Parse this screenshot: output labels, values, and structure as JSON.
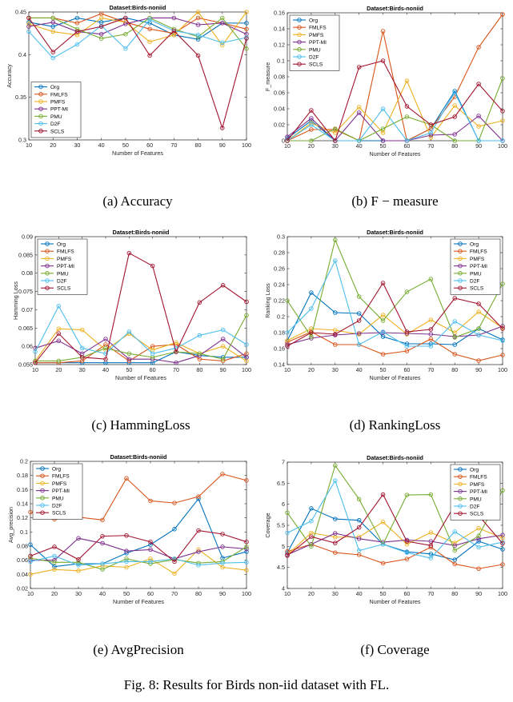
{
  "figure_caption": "Fig. 8: Results for Birds non-iid dataset with FL.",
  "series_styles": [
    {
      "name": "Org",
      "color": "#0072BD"
    },
    {
      "name": "FMLFS",
      "color": "#D95319"
    },
    {
      "name": "PMFS",
      "color": "#EDB120"
    },
    {
      "name": "PPT-MI",
      "color": "#7E2F8E"
    },
    {
      "name": "PMU",
      "color": "#77AC30"
    },
    {
      "name": "D2F",
      "color": "#4DBEEE"
    },
    {
      "name": "SCLS",
      "color": "#A2142F"
    }
  ],
  "chart_data": [
    {
      "type": "line",
      "caption": "(a) Accuracy",
      "title": "Dataset:Birds-noniid",
      "xlabel": "Number of Features",
      "ylabel": "Accuracy",
      "x": [
        10,
        20,
        30,
        40,
        50,
        60,
        70,
        80,
        90,
        100
      ],
      "xlim": [
        10,
        100
      ],
      "ylim": [
        0.3,
        0.45
      ],
      "yticks": [
        0.3,
        0.35,
        0.4,
        0.45
      ],
      "yticklabels": [
        "0.3",
        "0.35",
        "0.4",
        "0.45"
      ],
      "legend_position": "bottom-left",
      "series": [
        {
          "name": "Org",
          "values": [
            0.438,
            0.433,
            0.443,
            0.438,
            0.443,
            0.437,
            0.423,
            0.418,
            0.437,
            0.437
          ]
        },
        {
          "name": "FMLFS",
          "values": [
            0.443,
            0.443,
            0.437,
            0.448,
            0.438,
            0.43,
            0.425,
            0.443,
            0.437,
            0.43
          ]
        },
        {
          "name": "PMFS",
          "values": [
            0.436,
            0.427,
            0.423,
            0.443,
            0.438,
            0.415,
            0.423,
            0.45,
            0.411,
            0.45
          ]
        },
        {
          "name": "PPT-MI",
          "values": [
            0.433,
            0.438,
            0.427,
            0.424,
            0.436,
            0.443,
            0.443,
            0.435,
            0.437,
            0.424
          ]
        },
        {
          "name": "PMU",
          "values": [
            0.443,
            0.443,
            0.43,
            0.419,
            0.424,
            0.443,
            0.43,
            0.421,
            0.443,
            0.407
          ]
        },
        {
          "name": "D2F",
          "values": [
            0.427,
            0.396,
            0.412,
            0.434,
            0.407,
            0.441,
            0.428,
            0.423,
            0.414,
            0.42
          ]
        },
        {
          "name": "SCLS",
          "values": [
            0.443,
            0.403,
            0.427,
            0.433,
            0.443,
            0.399,
            0.428,
            0.399,
            0.314,
            0.419
          ]
        }
      ]
    },
    {
      "type": "line",
      "caption": "(b) F − measure",
      "title": "Dataset:Birds-noniid",
      "xlabel": "Number of Features",
      "ylabel": "F_measure",
      "x": [
        10,
        20,
        30,
        40,
        50,
        60,
        70,
        80,
        90,
        100
      ],
      "xlim": [
        10,
        100
      ],
      "ylim": [
        0,
        0.16
      ],
      "yticks": [
        0,
        0.02,
        0.04,
        0.06,
        0.08,
        0.1,
        0.12,
        0.14,
        0.16
      ],
      "yticklabels": [
        "0",
        "0.02",
        "0.04",
        "0.06",
        "0.08",
        "0.1",
        "0.12",
        "0.14",
        "0.16"
      ],
      "legend_position": "top-left",
      "series": [
        {
          "name": "Org",
          "values": [
            0.003,
            0.025,
            0.0,
            0.0,
            0.0,
            0.0,
            0.015,
            0.062,
            0.0,
            0.0
          ]
        },
        {
          "name": "FMLFS",
          "values": [
            0.0,
            0.014,
            0.014,
            0.0,
            0.137,
            0.0,
            0.015,
            0.055,
            0.117,
            0.158
          ]
        },
        {
          "name": "PMFS",
          "values": [
            0.0,
            0.022,
            0.01,
            0.042,
            0.01,
            0.075,
            0.004,
            0.044,
            0.018,
            0.025
          ]
        },
        {
          "name": "PPT-MI",
          "values": [
            0.005,
            0.028,
            0.0,
            0.035,
            0.0,
            0.0,
            0.007,
            0.008,
            0.031,
            0.0
          ]
        },
        {
          "name": "PMU",
          "values": [
            0.0,
            0.0,
            0.015,
            0.0,
            0.015,
            0.03,
            0.02,
            0.0,
            0.0,
            0.078
          ]
        },
        {
          "name": "D2F",
          "values": [
            0.0,
            0.02,
            0.0,
            0.0,
            0.04,
            0.0,
            0.01,
            0.06,
            0.0,
            0.0
          ]
        },
        {
          "name": "SCLS",
          "values": [
            0.0,
            0.038,
            0.0,
            0.092,
            0.1,
            0.043,
            0.02,
            0.03,
            0.071,
            0.037
          ]
        }
      ]
    },
    {
      "type": "line",
      "caption": "(c) HammingLoss",
      "title": "Dataset:Birds-noniid",
      "xlabel": "Number of Features",
      "ylabel": "Hamming Loss",
      "x": [
        10,
        20,
        30,
        40,
        50,
        60,
        70,
        80,
        90,
        100
      ],
      "xlim": [
        10,
        100
      ],
      "ylim": [
        0.055,
        0.09
      ],
      "yticks": [
        0.055,
        0.06,
        0.065,
        0.07,
        0.075,
        0.08,
        0.085,
        0.09
      ],
      "yticklabels": [
        "0.055",
        "0.06",
        "0.065",
        "0.07",
        "0.075",
        "0.08",
        "0.085",
        "0.09"
      ],
      "legend_position": "top-left",
      "series": [
        {
          "name": "Org",
          "values": [
            0.0555,
            0.0555,
            0.0555,
            0.0555,
            0.0555,
            0.0555,
            0.0585,
            0.0575,
            0.057,
            0.057
          ]
        },
        {
          "name": "FMLFS",
          "values": [
            0.0555,
            0.0555,
            0.056,
            0.0605,
            0.056,
            0.06,
            0.0605,
            0.0565,
            0.056,
            0.058
          ]
        },
        {
          "name": "PMFS",
          "values": [
            0.056,
            0.0648,
            0.0645,
            0.059,
            0.0635,
            0.059,
            0.061,
            0.058,
            0.06,
            0.056
          ]
        },
        {
          "name": "PPT-MI",
          "values": [
            0.0595,
            0.0615,
            0.058,
            0.062,
            0.0565,
            0.0565,
            0.0555,
            0.0575,
            0.062,
            0.057
          ]
        },
        {
          "name": "PMU",
          "values": [
            0.056,
            0.056,
            0.057,
            0.0595,
            0.058,
            0.057,
            0.0585,
            0.058,
            0.0565,
            0.0685
          ]
        },
        {
          "name": "D2F",
          "values": [
            0.0585,
            0.071,
            0.0595,
            0.058,
            0.064,
            0.058,
            0.0595,
            0.063,
            0.0645,
            0.0605
          ]
        },
        {
          "name": "SCLS",
          "values": [
            0.0555,
            0.0635,
            0.057,
            0.0565,
            0.0855,
            0.082,
            0.0585,
            0.072,
            0.0767,
            0.0722
          ]
        }
      ]
    },
    {
      "type": "line",
      "caption": "(d) RankingLoss",
      "title": "Dataset:Birds-noniid",
      "xlabel": "Number of Features",
      "ylabel": "Ranking Loss",
      "x": [
        10,
        20,
        30,
        40,
        50,
        60,
        70,
        80,
        90,
        100
      ],
      "xlim": [
        10,
        100
      ],
      "ylim": [
        0.14,
        0.3
      ],
      "yticks": [
        0.14,
        0.16,
        0.18,
        0.2,
        0.22,
        0.24,
        0.26,
        0.28,
        0.3
      ],
      "yticklabels": [
        "0.14",
        "0.16",
        "0.18",
        "0.2",
        "0.22",
        "0.24",
        "0.26",
        "0.28",
        "0.3"
      ],
      "legend_position": "top-right",
      "series": [
        {
          "name": "Org",
          "values": [
            0.17,
            0.23,
            0.205,
            0.204,
            0.175,
            0.166,
            0.166,
            0.165,
            0.185,
            0.171
          ]
        },
        {
          "name": "FMLFS",
          "values": [
            0.168,
            0.181,
            0.165,
            0.165,
            0.153,
            0.157,
            0.172,
            0.153,
            0.145,
            0.152
          ]
        },
        {
          "name": "PMFS",
          "values": [
            0.17,
            0.185,
            0.183,
            0.178,
            0.202,
            0.178,
            0.196,
            0.18,
            0.206,
            0.186
          ]
        },
        {
          "name": "PPT-MI",
          "values": [
            0.165,
            0.173,
            0.177,
            0.179,
            0.18,
            0.179,
            0.178,
            0.175,
            0.177,
            0.188
          ]
        },
        {
          "name": "PMU",
          "values": [
            0.22,
            0.175,
            0.296,
            0.225,
            0.195,
            0.231,
            0.247,
            0.174,
            0.185,
            0.241
          ]
        },
        {
          "name": "D2F",
          "values": [
            0.18,
            0.21,
            0.27,
            0.165,
            0.181,
            0.163,
            0.163,
            0.194,
            0.177,
            0.17
          ]
        },
        {
          "name": "SCLS",
          "values": [
            0.163,
            0.18,
            0.178,
            0.195,
            0.242,
            0.181,
            0.184,
            0.223,
            0.216,
            0.185
          ]
        }
      ]
    },
    {
      "type": "line",
      "caption": "(e) AvgPrecision",
      "title": "Dataset:Birds-noniid",
      "xlabel": "Number of Features",
      "ylabel": "Avg_precision",
      "x": [
        10,
        20,
        30,
        40,
        50,
        60,
        70,
        80,
        90,
        100
      ],
      "xlim": [
        10,
        100
      ],
      "ylim": [
        0.02,
        0.2
      ],
      "yticks": [
        0.02,
        0.04,
        0.06,
        0.08,
        0.1,
        0.12,
        0.14,
        0.16,
        0.18,
        0.2
      ],
      "yticklabels": [
        "0.02",
        "0.04",
        "0.06",
        "0.08",
        "0.1",
        "0.12",
        "0.14",
        "0.16",
        "0.18",
        "0.2"
      ],
      "legend_position": "top-left",
      "series": [
        {
          "name": "Org",
          "values": [
            0.082,
            0.051,
            0.055,
            0.055,
            0.07,
            0.082,
            0.104,
            0.147,
            0.063,
            0.072
          ]
        },
        {
          "name": "FMLFS",
          "values": [
            0.128,
            0.118,
            0.121,
            0.117,
            0.176,
            0.144,
            0.141,
            0.15,
            0.182,
            0.173
          ]
        },
        {
          "name": "PMFS",
          "values": [
            0.04,
            0.047,
            0.045,
            0.052,
            0.05,
            0.062,
            0.041,
            0.075,
            0.05,
            0.046
          ]
        },
        {
          "name": "PPT-MI",
          "values": [
            0.06,
            0.06,
            0.091,
            0.084,
            0.073,
            0.075,
            0.062,
            0.072,
            0.079,
            0.076
          ]
        },
        {
          "name": "PMU",
          "values": [
            0.063,
            0.057,
            0.057,
            0.047,
            0.062,
            0.055,
            0.061,
            0.056,
            0.058,
            0.079
          ]
        },
        {
          "name": "D2F",
          "values": [
            0.058,
            0.066,
            0.053,
            0.055,
            0.058,
            0.058,
            0.062,
            0.053,
            0.056,
            0.057
          ]
        },
        {
          "name": "SCLS",
          "values": [
            0.066,
            0.079,
            0.061,
            0.094,
            0.095,
            0.086,
            0.058,
            0.102,
            0.097,
            0.086
          ]
        }
      ]
    },
    {
      "type": "line",
      "caption": "(f) Coverage",
      "title": "Dataset:Birds-noniid",
      "xlabel": "Number of Features",
      "ylabel": "Coverage",
      "x": [
        10,
        20,
        30,
        40,
        50,
        60,
        70,
        80,
        90,
        100
      ],
      "xlim": [
        10,
        100
      ],
      "ylim": [
        4,
        7
      ],
      "yticks": [
        4,
        4.5,
        5,
        5.5,
        6,
        6.5,
        7
      ],
      "yticklabels": [
        "4",
        "4.5",
        "5",
        "5.5",
        "6",
        "6.5",
        "7"
      ],
      "legend_position": "top-right",
      "series": [
        {
          "name": "Org",
          "values": [
            4.85,
            5.9,
            5.65,
            5.62,
            5.05,
            4.87,
            4.82,
            4.68,
            5.12,
            4.93
          ]
        },
        {
          "name": "FMLFS",
          "values": [
            4.88,
            5.05,
            4.85,
            4.8,
            4.6,
            4.7,
            4.98,
            4.58,
            4.47,
            4.57
          ]
        },
        {
          "name": "PMFS",
          "values": [
            4.8,
            5.32,
            5.22,
            5.22,
            5.58,
            5.05,
            5.33,
            5.08,
            5.43,
            5.2
          ]
        },
        {
          "name": "PPT-MI",
          "values": [
            4.8,
            5.05,
            5.31,
            5.18,
            5.1,
            5.15,
            5.12,
            5.02,
            5.18,
            5.27
          ]
        },
        {
          "name": "PMU",
          "values": [
            5.8,
            5.0,
            6.92,
            6.12,
            5.05,
            6.22,
            6.23,
            4.9,
            5.25,
            6.33
          ]
        },
        {
          "name": "D2F",
          "values": [
            5.32,
            5.6,
            6.56,
            4.9,
            5.05,
            4.85,
            4.72,
            5.35,
            4.98,
            5.1
          ]
        },
        {
          "name": "SCLS",
          "values": [
            4.78,
            5.23,
            5.08,
            5.45,
            6.23,
            5.12,
            5.02,
            5.98,
            5.73,
            5.07
          ]
        }
      ]
    }
  ]
}
